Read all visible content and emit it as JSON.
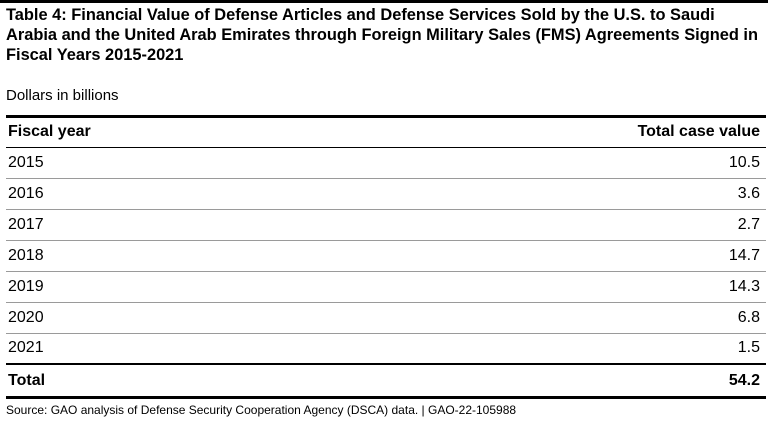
{
  "title": "Table 4: Financial Value of Defense Articles and Defense Services Sold by the U.S. to Saudi Arabia and the United Arab Emirates through Foreign Military Sales (FMS) Agreements Signed in Fiscal Years 2015-2021",
  "subtitle": "Dollars in billions",
  "table": {
    "columns": [
      "Fiscal year",
      "Total case value"
    ],
    "rows": [
      {
        "year": "2015",
        "value": "10.5"
      },
      {
        "year": "2016",
        "value": "3.6"
      },
      {
        "year": "2017",
        "value": "2.7"
      },
      {
        "year": "2018",
        "value": "14.7"
      },
      {
        "year": "2019",
        "value": "14.3"
      },
      {
        "year": "2020",
        "value": "6.8"
      },
      {
        "year": "2021",
        "value": "1.5"
      }
    ],
    "total": {
      "label": "Total",
      "value": "54.2"
    }
  },
  "source": "Source: GAO analysis of Defense Security Cooperation Agency (DSCA) data. | GAO-22-105988"
}
